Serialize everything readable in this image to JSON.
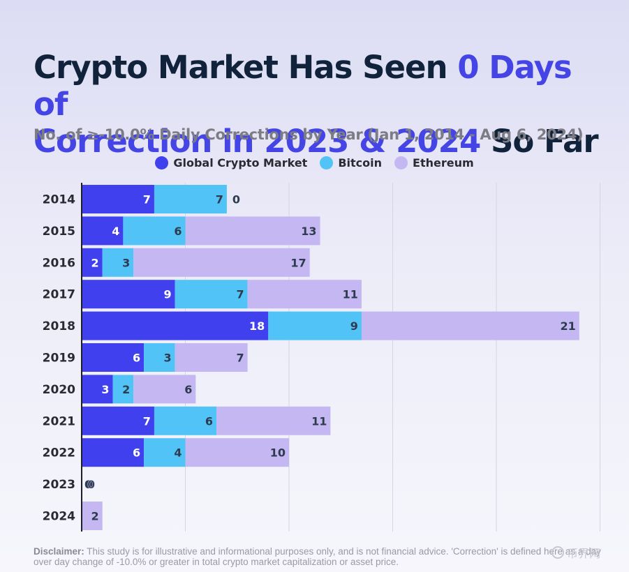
{
  "title": {
    "part1": "Crypto Market Has Seen ",
    "highlight1": "0 Days of",
    "highlight2": "Correction in 2023 & 2024",
    "part2": " So Far"
  },
  "subtitle": "No. of ≥-10.0% Daily Corrections by Year (Jan 1, 2014 - Aug 6, 2024)",
  "disclaimer": {
    "label": "Disclaimer:",
    "text": " This study is for illustrative and informational purposes only, and is not financial advice. 'Correction' is defined here as a day over day change of -10.0% or greater in total crypto market capitalization or asset price."
  },
  "watermark": "币界网",
  "chart_data": {
    "type": "bar",
    "orientation": "horizontal",
    "stacked": true,
    "title": "Crypto Market Has Seen 0 Days of Correction in 2023 & 2024 So Far",
    "subtitle": "No. of ≥-10.0% Daily Corrections by Year (Jan 1, 2014 - Aug 6, 2024)",
    "categories": [
      "2014",
      "2015",
      "2016",
      "2017",
      "2018",
      "2019",
      "2020",
      "2021",
      "2022",
      "2023",
      "2024"
    ],
    "series": [
      {
        "name": "Global Crypto Market",
        "color": "#4040ee",
        "values": [
          7,
          4,
          2,
          9,
          18,
          6,
          3,
          7,
          6,
          0,
          0
        ]
      },
      {
        "name": "Bitcoin",
        "color": "#52c3f7",
        "values": [
          7,
          6,
          3,
          7,
          9,
          3,
          2,
          6,
          4,
          0,
          0
        ]
      },
      {
        "name": "Ethereum",
        "color": "#c5b8f2",
        "values": [
          0,
          13,
          17,
          11,
          21,
          7,
          6,
          11,
          10,
          0,
          2
        ]
      }
    ],
    "xlim": [
      0,
      50
    ],
    "grid": true,
    "legend_position": "top-center"
  }
}
